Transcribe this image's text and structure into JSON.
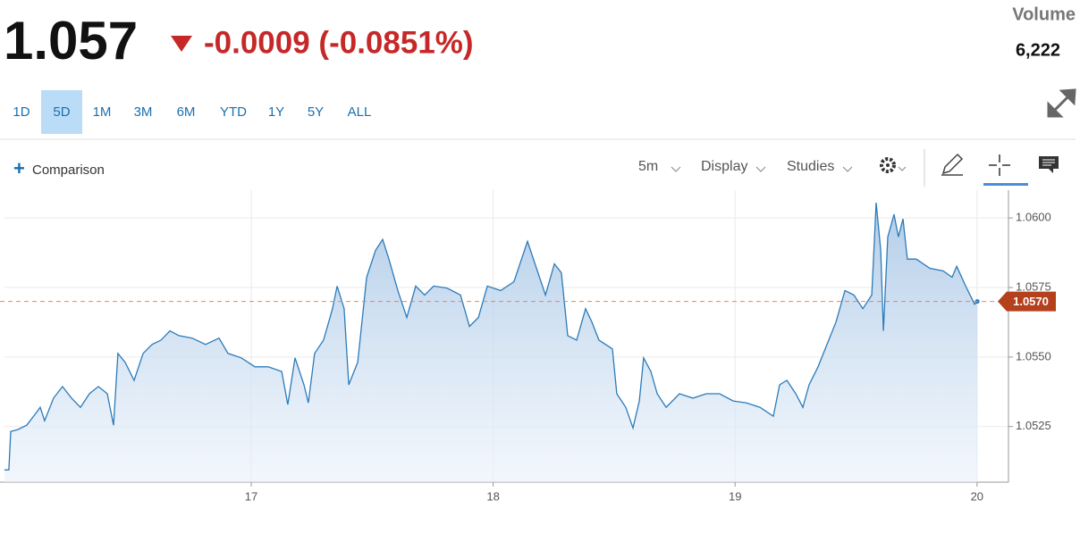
{
  "header": {
    "price": "1.057",
    "change": "-0.0009 (-0.0851%)",
    "volume_label": "Volume",
    "volume": "6,222"
  },
  "ranges": [
    "1D",
    "5D",
    "1M",
    "3M",
    "6M",
    "YTD",
    "1Y",
    "5Y",
    "ALL"
  ],
  "selected_range": "5D",
  "toolbar": {
    "comparison": "Comparison",
    "interval": "5m",
    "display": "Display",
    "studies": "Studies"
  },
  "chart_data": {
    "type": "area",
    "x": [
      15.98,
      15.998,
      16.006,
      16.035,
      16.072,
      16.109,
      16.128,
      16.146,
      16.183,
      16.22,
      16.257,
      16.294,
      16.331,
      16.368,
      16.405,
      16.431,
      16.449,
      16.479,
      16.516,
      16.553,
      16.59,
      16.627,
      16.664,
      16.701,
      16.756,
      16.811,
      16.867,
      16.904,
      16.959,
      17.015,
      17.07,
      17.126,
      17.151,
      17.181,
      17.218,
      17.236,
      17.262,
      17.299,
      17.336,
      17.355,
      17.384,
      17.403,
      17.44,
      17.477,
      17.514,
      17.543,
      17.569,
      17.606,
      17.643,
      17.68,
      17.717,
      17.754,
      17.809,
      17.865,
      17.902,
      17.939,
      17.976,
      18.031,
      18.086,
      18.142,
      18.179,
      18.216,
      18.253,
      18.282,
      18.308,
      18.345,
      18.382,
      18.408,
      18.437,
      18.493,
      18.511,
      18.548,
      18.578,
      18.604,
      18.622,
      18.652,
      18.678,
      18.715,
      18.77,
      18.826,
      18.881,
      18.936,
      18.992,
      19.047,
      19.103,
      19.158,
      19.184,
      19.214,
      19.251,
      19.28,
      19.306,
      19.343,
      19.38,
      19.417,
      19.454,
      19.491,
      19.528,
      19.565,
      19.583,
      19.602,
      19.613,
      19.631,
      19.657,
      19.675,
      19.694,
      19.712,
      19.749,
      19.805,
      19.86,
      19.897,
      19.916,
      19.953,
      19.99,
      20.001
    ],
    "series": [
      {
        "color": "#2b7bb9",
        "values": [
          1.05094,
          1.05094,
          1.05232,
          1.05239,
          1.05255,
          1.05297,
          1.05319,
          1.05271,
          1.05352,
          1.05394,
          1.05352,
          1.05319,
          1.05368,
          1.05394,
          1.05368,
          1.05255,
          1.05513,
          1.05481,
          1.05416,
          1.05513,
          1.05545,
          1.05561,
          1.05594,
          1.05577,
          1.05568,
          1.05545,
          1.05568,
          1.05513,
          1.05497,
          1.05465,
          1.05465,
          1.05448,
          1.05329,
          1.05497,
          1.054,
          1.05335,
          1.05513,
          1.05561,
          1.05674,
          1.05755,
          1.05674,
          1.054,
          1.05481,
          1.05787,
          1.05884,
          1.05923,
          1.05852,
          1.05739,
          1.05642,
          1.05755,
          1.05723,
          1.05755,
          1.05748,
          1.05723,
          1.0561,
          1.05642,
          1.05755,
          1.05739,
          1.05771,
          1.05916,
          1.05819,
          1.05723,
          1.05835,
          1.05803,
          1.05577,
          1.05561,
          1.05674,
          1.05626,
          1.05561,
          1.05529,
          1.05368,
          1.05319,
          1.05245,
          1.05342,
          1.05497,
          1.05448,
          1.05368,
          1.05319,
          1.05368,
          1.05352,
          1.05368,
          1.05368,
          1.05342,
          1.05335,
          1.05319,
          1.05287,
          1.054,
          1.05416,
          1.05368,
          1.05319,
          1.054,
          1.05465,
          1.05545,
          1.05626,
          1.05739,
          1.05723,
          1.05674,
          1.05723,
          1.06055,
          1.05884,
          1.05594,
          1.05932,
          1.06013,
          1.05932,
          1.05997,
          1.05852,
          1.05852,
          1.05819,
          1.0581,
          1.05787,
          1.05826,
          1.05755,
          1.0569,
          1.057
        ]
      }
    ],
    "xlim": [
      15.98,
      20.13
    ],
    "xticks": [
      17,
      18,
      19,
      20
    ],
    "ylim": [
      1.0505,
      1.061
    ],
    "yticks": [
      {
        "value": 1.0525,
        "label": "1.0525"
      },
      {
        "value": 1.055,
        "label": "1.0550"
      },
      {
        "value": 1.0575,
        "label": "1.0575"
      },
      {
        "value": 1.06,
        "label": "1.0600"
      }
    ],
    "grid": true,
    "last_price": {
      "value": 1.057,
      "label": "1.0570",
      "color": "#b5401c"
    }
  }
}
